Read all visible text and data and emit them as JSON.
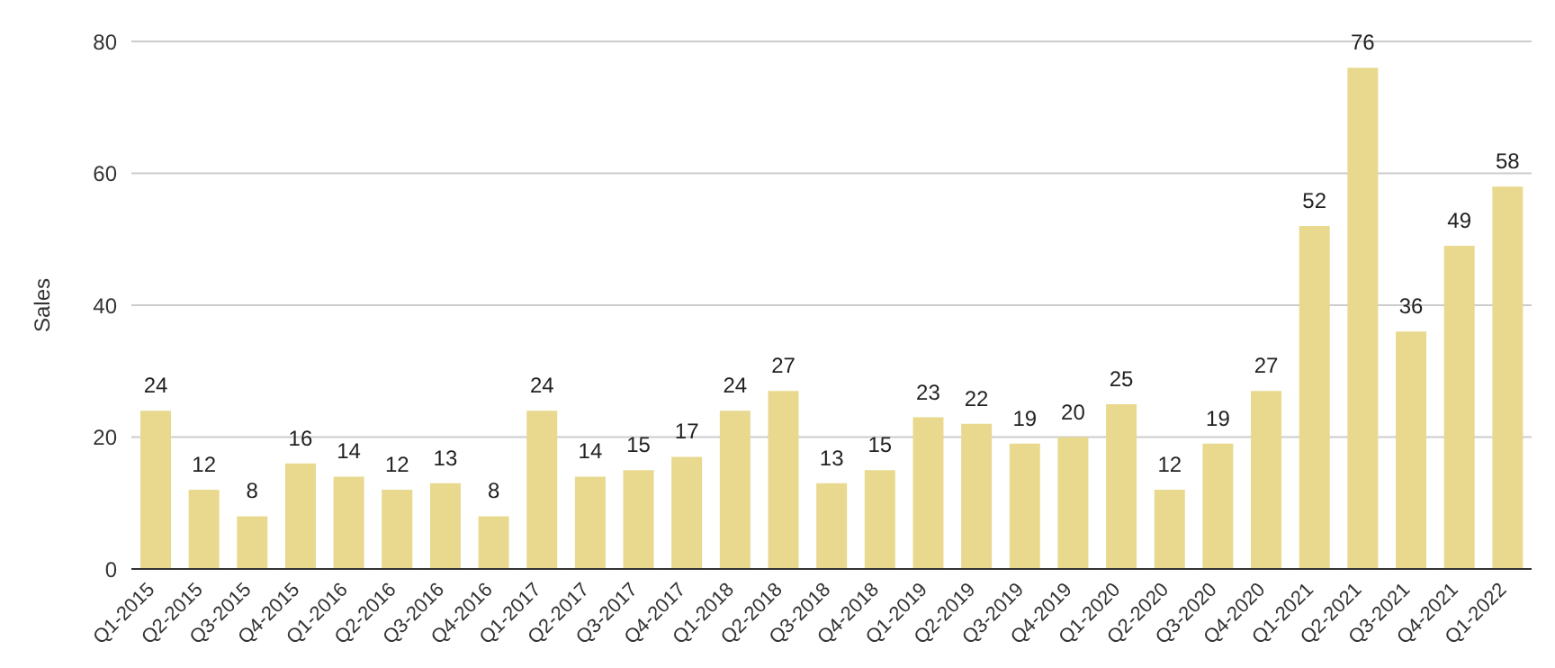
{
  "chart_data": {
    "type": "bar",
    "ylabel": "Sales",
    "categories": [
      "Q1-2015",
      "Q2-2015",
      "Q3-2015",
      "Q4-2015",
      "Q1-2016",
      "Q2-2016",
      "Q3-2016",
      "Q4-2016",
      "Q1-2017",
      "Q2-2017",
      "Q3-2017",
      "Q4-2017",
      "Q1-2018",
      "Q2-2018",
      "Q3-2018",
      "Q4-2018",
      "Q1-2019",
      "Q2-2019",
      "Q3-2019",
      "Q4-2019",
      "Q1-2020",
      "Q2-2020",
      "Q3-2020",
      "Q4-2020",
      "Q1-2021",
      "Q2-2021",
      "Q3-2021",
      "Q4-2021",
      "Q1-2022"
    ],
    "values": [
      24,
      12,
      8,
      16,
      14,
      12,
      13,
      8,
      24,
      14,
      15,
      17,
      24,
      27,
      13,
      15,
      23,
      22,
      19,
      20,
      25,
      12,
      19,
      27,
      52,
      76,
      36,
      49,
      58
    ],
    "color": "#e8d98f",
    "ylim": [
      0,
      80
    ],
    "yticks": [
      0,
      20,
      40,
      60,
      80
    ],
    "grid": "y",
    "data_labels": true
  }
}
